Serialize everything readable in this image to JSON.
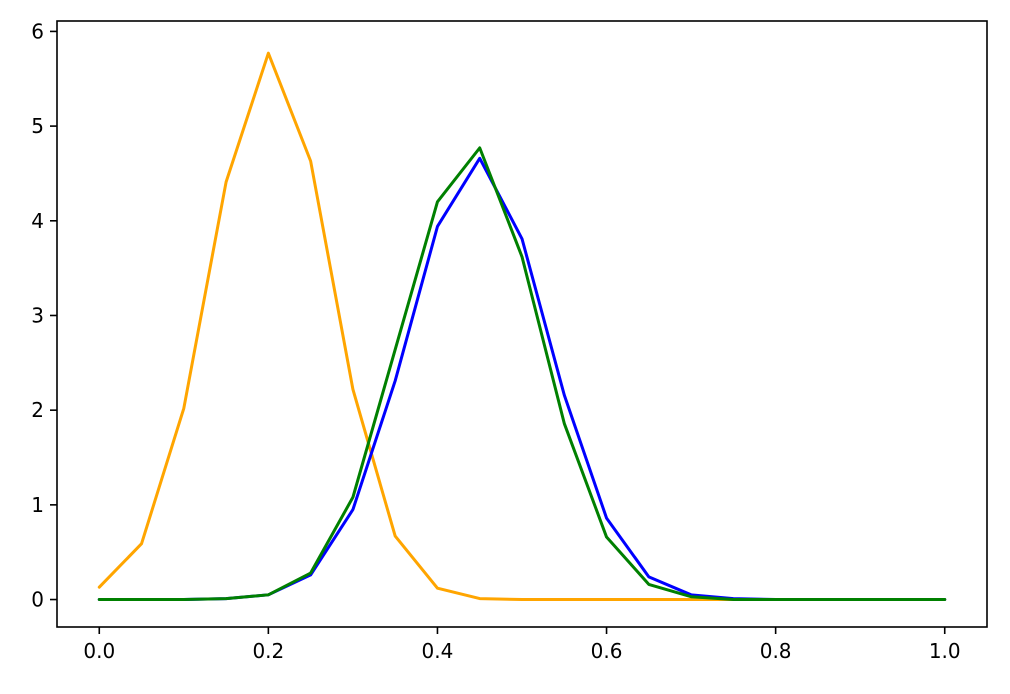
{
  "chart_data": {
    "type": "line",
    "title": "",
    "xlabel": "",
    "ylabel": "",
    "xlim": [
      -0.05,
      1.05
    ],
    "ylim": [
      -0.29,
      6.11
    ],
    "x_ticks": [
      0.0,
      0.2,
      0.4,
      0.6,
      0.8,
      1.0
    ],
    "x_tick_labels": [
      "0.0",
      "0.2",
      "0.4",
      "0.6",
      "0.8",
      "1.0"
    ],
    "y_ticks": [
      0,
      1,
      2,
      3,
      4,
      5,
      6
    ],
    "y_tick_labels": [
      "0",
      "1",
      "2",
      "3",
      "4",
      "5",
      "6"
    ],
    "grid": false,
    "legend": "none",
    "x": [
      0.0,
      0.05,
      0.1,
      0.15,
      0.2,
      0.25,
      0.3,
      0.35,
      0.4,
      0.45,
      0.5,
      0.55,
      0.6,
      0.65,
      0.7,
      0.75,
      0.8,
      0.85,
      0.9,
      0.95,
      1.0
    ],
    "series": [
      {
        "color": "#ffa500",
        "values": [
          0.13,
          0.59,
          2.02,
          4.41,
          5.77,
          4.63,
          2.22,
          0.67,
          0.12,
          0.01,
          0.0,
          0.0,
          0.0,
          0.0,
          0.0,
          0.0,
          0.0,
          0.0,
          0.0,
          0.0,
          0.0
        ]
      },
      {
        "color": "#0000ff",
        "values": [
          0.0,
          0.0,
          0.0,
          0.01,
          0.05,
          0.26,
          0.95,
          2.31,
          3.94,
          4.66,
          3.81,
          2.16,
          0.86,
          0.24,
          0.05,
          0.01,
          0.0,
          0.0,
          0.0,
          0.0,
          0.0
        ]
      },
      {
        "color": "#008000",
        "values": [
          0.0,
          0.0,
          0.0,
          0.01,
          0.05,
          0.28,
          1.08,
          2.64,
          4.2,
          4.77,
          3.62,
          1.86,
          0.66,
          0.16,
          0.03,
          0.0,
          0.0,
          0.0,
          0.0,
          0.0,
          0.0
        ]
      }
    ]
  }
}
